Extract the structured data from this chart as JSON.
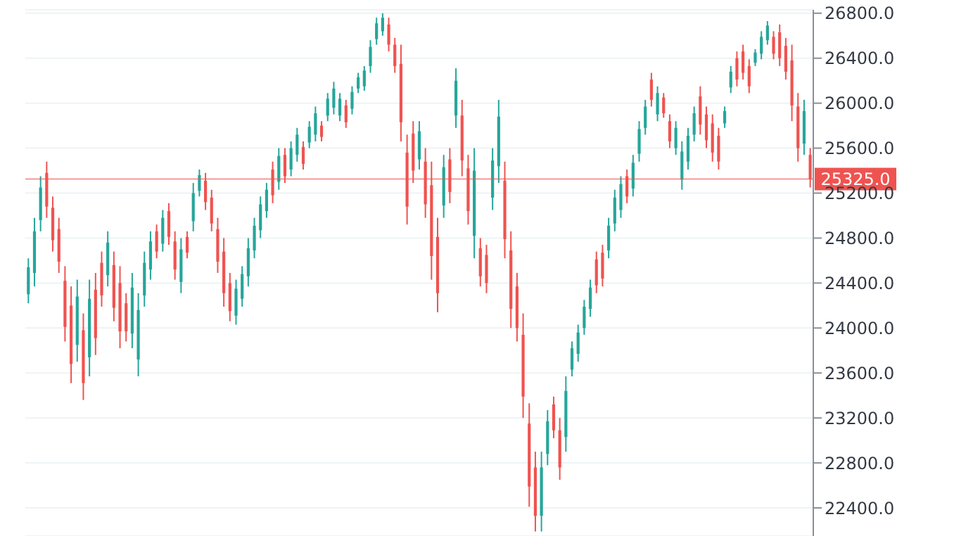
{
  "chart_data": {
    "type": "candlestick",
    "categories": [
      null,
      null,
      null,
      null,
      null,
      null,
      null,
      null,
      null,
      null,
      null,
      null,
      null,
      null,
      null,
      null,
      null,
      null,
      null,
      null,
      null,
      null,
      null,
      null,
      null,
      null,
      null,
      null,
      null,
      null,
      null,
      null,
      null,
      null,
      null,
      null,
      null,
      null,
      null,
      null,
      null,
      null,
      null,
      null,
      null,
      null,
      null,
      null,
      null,
      null,
      null,
      null,
      null,
      null,
      null,
      null,
      null,
      null,
      null,
      null,
      null,
      null,
      null,
      null,
      null,
      null,
      null,
      null,
      null,
      null,
      null,
      null,
      null,
      null,
      null,
      null,
      null,
      null,
      null,
      null,
      null,
      null,
      null,
      null,
      null,
      null,
      null,
      null,
      null,
      null,
      null,
      null,
      null,
      null,
      null,
      null,
      null,
      null,
      null,
      null,
      null,
      null,
      null,
      null,
      null,
      null,
      null,
      null,
      null,
      null,
      null,
      null,
      null,
      null,
      null,
      null,
      null,
      null,
      null,
      null,
      null,
      null,
      null,
      null,
      null,
      null,
      null,
      null,
      null
    ],
    "ohlc": [
      [
        24300,
        24620,
        24220,
        24540
      ],
      [
        24490,
        24980,
        24370,
        24860
      ],
      [
        24960,
        25350,
        24860,
        25250
      ],
      [
        25380,
        25480,
        24980,
        25080
      ],
      [
        25070,
        25170,
        24680,
        24780
      ],
      [
        24880,
        24980,
        24490,
        24590
      ],
      [
        24420,
        24550,
        23880,
        24010
      ],
      [
        24200,
        24370,
        23510,
        23680
      ],
      [
        23850,
        24430,
        23700,
        24280
      ],
      [
        23980,
        24130,
        23360,
        23510
      ],
      [
        23740,
        24430,
        23570,
        24260
      ],
      [
        24340,
        24490,
        23760,
        23910
      ],
      [
        24580,
        24680,
        24190,
        24290
      ],
      [
        24470,
        24860,
        24370,
        24760
      ],
      [
        24560,
        24680,
        24060,
        24180
      ],
      [
        24400,
        24550,
        23820,
        23970
      ],
      [
        24220,
        24310,
        23880,
        23970
      ],
      [
        23950,
        24490,
        23820,
        24360
      ],
      [
        23720,
        24310,
        23570,
        24160
      ],
      [
        24290,
        24680,
        24190,
        24580
      ],
      [
        24520,
        24860,
        24430,
        24770
      ],
      [
        24860,
        24920,
        24620,
        24680
      ],
      [
        24750,
        25050,
        24680,
        24980
      ],
      [
        25040,
        25110,
        24740,
        24810
      ],
      [
        24770,
        24860,
        24430,
        24520
      ],
      [
        24410,
        24800,
        24310,
        24700
      ],
      [
        24810,
        24860,
        24620,
        24670
      ],
      [
        24950,
        25290,
        24860,
        25200
      ],
      [
        25220,
        25410,
        25170,
        25360
      ],
      [
        25310,
        25380,
        25050,
        25120
      ],
      [
        25160,
        25230,
        24860,
        24930
      ],
      [
        24880,
        24980,
        24490,
        24590
      ],
      [
        24680,
        24800,
        24190,
        24310
      ],
      [
        24400,
        24490,
        24060,
        24150
      ],
      [
        24110,
        24430,
        24030,
        24350
      ],
      [
        24260,
        24550,
        24190,
        24480
      ],
      [
        24460,
        24800,
        24370,
        24710
      ],
      [
        24690,
        24980,
        24620,
        24910
      ],
      [
        24870,
        25170,
        24800,
        25100
      ],
      [
        25040,
        25290,
        24980,
        25230
      ],
      [
        25410,
        25480,
        25110,
        25180
      ],
      [
        25300,
        25600,
        25230,
        25530
      ],
      [
        25540,
        25600,
        25290,
        25350
      ],
      [
        25410,
        25660,
        25350,
        25600
      ],
      [
        25540,
        25780,
        25480,
        25720
      ],
      [
        25610,
        25660,
        25410,
        25460
      ],
      [
        25650,
        25840,
        25600,
        25790
      ],
      [
        25720,
        25970,
        25660,
        25910
      ],
      [
        25800,
        25840,
        25660,
        25700
      ],
      [
        25890,
        26090,
        25840,
        26040
      ],
      [
        25960,
        26190,
        25900,
        26130
      ],
      [
        25890,
        26090,
        25840,
        26040
      ],
      [
        25980,
        26030,
        25780,
        25830
      ],
      [
        25950,
        26150,
        25900,
        26100
      ],
      [
        26130,
        26270,
        26090,
        26230
      ],
      [
        26150,
        26330,
        26110,
        26290
      ],
      [
        26330,
        26560,
        26270,
        26500
      ],
      [
        26570,
        26760,
        26520,
        26710
      ],
      [
        26640,
        26800,
        26600,
        26760
      ],
      [
        26700,
        26760,
        26460,
        26520
      ],
      [
        26520,
        26580,
        26270,
        26330
      ],
      [
        26350,
        26520,
        25660,
        25830
      ],
      [
        25560,
        25720,
        24920,
        25080
      ],
      [
        25730,
        25840,
        25290,
        25400
      ],
      [
        25500,
        25840,
        25410,
        25750
      ],
      [
        25480,
        25600,
        24980,
        25100
      ],
      [
        25270,
        25480,
        24430,
        24640
      ],
      [
        24810,
        24980,
        24140,
        24310
      ],
      [
        25090,
        25540,
        24980,
        25430
      ],
      [
        25500,
        25600,
        25110,
        25210
      ],
      [
        25890,
        26310,
        25780,
        26200
      ],
      [
        25890,
        26030,
        25350,
        25490
      ],
      [
        25420,
        25540,
        24920,
        25040
      ],
      [
        24820,
        25600,
        24620,
        25400
      ],
      [
        24710,
        24800,
        24370,
        24460
      ],
      [
        24650,
        24740,
        24310,
        24400
      ],
      [
        25160,
        25600,
        25050,
        25490
      ],
      [
        25440,
        26030,
        25290,
        25880
      ],
      [
        25310,
        25480,
        24620,
        24790
      ],
      [
        24690,
        24860,
        24000,
        24170
      ],
      [
        24370,
        24490,
        23880,
        24000
      ],
      [
        23940,
        24130,
        23200,
        23390
      ],
      [
        23150,
        23330,
        22410,
        22590
      ],
      [
        22760,
        22900,
        22190,
        22330
      ],
      [
        22330,
        22900,
        22190,
        22760
      ],
      [
        22880,
        23270,
        22780,
        23170
      ],
      [
        23320,
        23390,
        23020,
        23090
      ],
      [
        23090,
        23200,
        22650,
        22760
      ],
      [
        23030,
        23570,
        22900,
        23440
      ],
      [
        23630,
        23880,
        23570,
        23820
      ],
      [
        23770,
        24030,
        23700,
        23960
      ],
      [
        24000,
        24250,
        23940,
        24190
      ],
      [
        24170,
        24430,
        24100,
        24360
      ],
      [
        24610,
        24680,
        24310,
        24380
      ],
      [
        24670,
        24740,
        24370,
        24440
      ],
      [
        24690,
        24980,
        24620,
        24910
      ],
      [
        24930,
        25230,
        24860,
        25160
      ],
      [
        25050,
        25350,
        24980,
        25280
      ],
      [
        25350,
        25410,
        25110,
        25170
      ],
      [
        25240,
        25540,
        25170,
        25470
      ],
      [
        25550,
        25840,
        25480,
        25770
      ],
      [
        25780,
        26030,
        25720,
        25970
      ],
      [
        26210,
        26270,
        25970,
        26030
      ],
      [
        25900,
        26150,
        25840,
        26090
      ],
      [
        26050,
        26090,
        25870,
        25910
      ],
      [
        25840,
        25900,
        25600,
        25660
      ],
      [
        25600,
        25840,
        25540,
        25780
      ],
      [
        25320,
        25660,
        25230,
        25570
      ],
      [
        25480,
        25780,
        25410,
        25710
      ],
      [
        25720,
        25970,
        25660,
        25910
      ],
      [
        26060,
        26150,
        25720,
        25810
      ],
      [
        25900,
        25970,
        25600,
        25670
      ],
      [
        25820,
        25900,
        25480,
        25560
      ],
      [
        25710,
        25780,
        25410,
        25480
      ],
      [
        25820,
        25970,
        25780,
        25930
      ],
      [
        26140,
        26330,
        26090,
        26280
      ],
      [
        26400,
        26460,
        26150,
        26210
      ],
      [
        26460,
        26520,
        26210,
        26270
      ],
      [
        26330,
        26390,
        26090,
        26150
      ],
      [
        26360,
        26480,
        26330,
        26450
      ],
      [
        26440,
        26640,
        26390,
        26590
      ],
      [
        26560,
        26730,
        26520,
        26690
      ],
      [
        26590,
        26640,
        26390,
        26440
      ],
      [
        26630,
        26700,
        26330,
        26400
      ],
      [
        26510,
        26580,
        26210,
        26280
      ],
      [
        26380,
        26520,
        25840,
        25980
      ],
      [
        25970,
        26090,
        25480,
        25600
      ],
      [
        25640,
        26030,
        25540,
        25930
      ],
      [
        25540,
        25600,
        25250,
        25325
      ]
    ],
    "colors": [
      "#26a69a",
      "#26a69a",
      "#26a69a",
      "#ef5350",
      "#ef5350",
      "#ef5350",
      "#ef5350",
      "#ef5350",
      "#26a69a",
      "#ef5350",
      "#26a69a",
      "#ef5350",
      "#ef5350",
      "#26a69a",
      "#ef5350",
      "#ef5350",
      "#ef5350",
      "#26a69a",
      "#26a69a",
      "#26a69a",
      "#26a69a",
      "#ef5350",
      "#26a69a",
      "#ef5350",
      "#ef5350",
      "#26a69a",
      "#ef5350",
      "#26a69a",
      "#26a69a",
      "#ef5350",
      "#ef5350",
      "#ef5350",
      "#ef5350",
      "#ef5350",
      "#26a69a",
      "#26a69a",
      "#26a69a",
      "#26a69a",
      "#26a69a",
      "#26a69a",
      "#ef5350",
      "#26a69a",
      "#ef5350",
      "#26a69a",
      "#26a69a",
      "#ef5350",
      "#26a69a",
      "#26a69a",
      "#ef5350",
      "#26a69a",
      "#26a69a",
      "#26a69a",
      "#ef5350",
      "#26a69a",
      "#26a69a",
      "#26a69a",
      "#26a69a",
      "#26a69a",
      "#26a69a",
      "#ef5350",
      "#ef5350",
      "#ef5350",
      "#ef5350",
      "#ef5350",
      "#26a69a",
      "#ef5350",
      "#ef5350",
      "#ef5350",
      "#26a69a",
      "#ef5350",
      "#26a69a",
      "#ef5350",
      "#ef5350",
      "#26a69a",
      "#ef5350",
      "#ef5350",
      "#26a69a",
      "#26a69a",
      "#ef5350",
      "#ef5350",
      "#ef5350",
      "#ef5350",
      "#ef5350",
      "#ef5350",
      "#26a69a",
      "#26a69a",
      "#ef5350",
      "#ef5350",
      "#26a69a",
      "#26a69a",
      "#26a69a",
      "#26a69a",
      "#26a69a",
      "#ef5350",
      "#ef5350",
      "#26a69a",
      "#26a69a",
      "#26a69a",
      "#ef5350",
      "#26a69a",
      "#26a69a",
      "#26a69a",
      "#ef5350",
      "#26a69a",
      "#ef5350",
      "#ef5350",
      "#26a69a",
      "#26a69a",
      "#26a69a",
      "#26a69a",
      "#ef5350",
      "#ef5350",
      "#ef5350",
      "#ef5350",
      "#26a69a",
      "#26a69a",
      "#ef5350",
      "#ef5350",
      "#ef5350",
      "#26a69a",
      "#26a69a",
      "#26a69a",
      "#ef5350",
      "#ef5350",
      "#ef5350",
      "#ef5350",
      "#ef5350",
      "#26a69a",
      "#ef5350"
    ],
    "ylim": [
      22150,
      26830
    ],
    "yticks": [
      {
        "value": 22400,
        "label": "22400.0"
      },
      {
        "value": 22800,
        "label": "22800.0"
      },
      {
        "value": 23200,
        "label": "23200.0"
      },
      {
        "value": 23600,
        "label": "23600.0"
      },
      {
        "value": 24000,
        "label": "24000.0"
      },
      {
        "value": 24400,
        "label": "24400.0"
      },
      {
        "value": 24800,
        "label": "24800.0"
      },
      {
        "value": 25200,
        "label": "25200.0"
      },
      {
        "value": 25600,
        "label": "25600.0"
      },
      {
        "value": 26000,
        "label": "26000.0"
      },
      {
        "value": 26400,
        "label": "26400.0"
      },
      {
        "value": 26800,
        "label": "26800.0"
      }
    ],
    "grid": "y",
    "tick_labels": "y",
    "ref_lines": [
      {
        "axis": "y",
        "value": 25325,
        "label": "25325.0",
        "color": "#ef5350"
      }
    ]
  }
}
